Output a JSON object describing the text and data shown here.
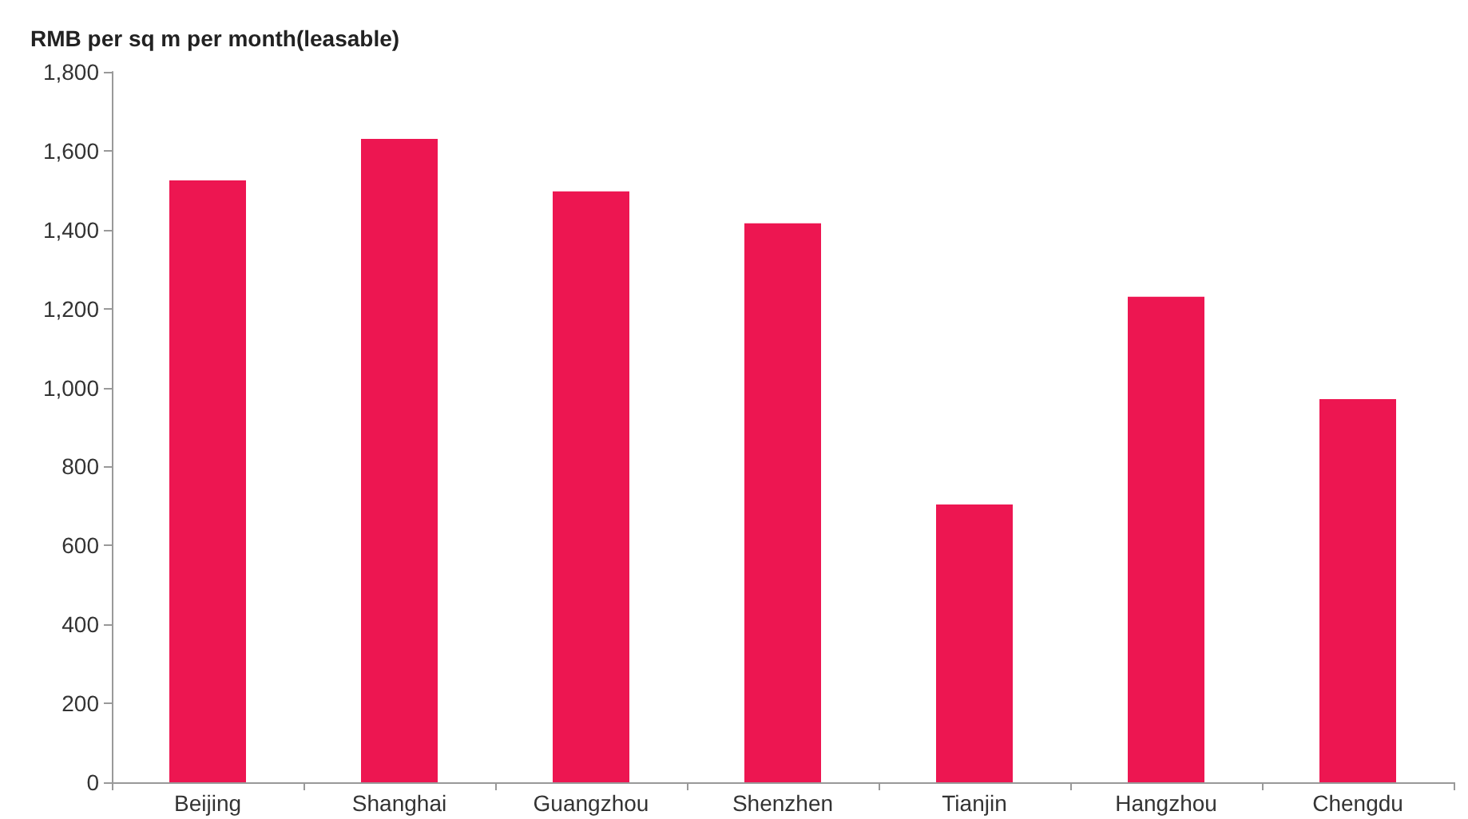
{
  "chart_data": {
    "type": "bar",
    "ylabel": "RMB per sq m per month(leasable)",
    "categories": [
      "Beijing",
      "Shanghai",
      "Guangzhou",
      "Shenzhen",
      "Tianjin",
      "Hangzhou",
      "Chengdu"
    ],
    "values": [
      1525,
      1630,
      1497,
      1416,
      704,
      1230,
      971
    ],
    "color": "#ed1651",
    "ylim": [
      0,
      1800
    ],
    "yticks": [
      0,
      200,
      400,
      600,
      800,
      {
        "value": 1000,
        "label": "1,000"
      },
      {
        "value": 1200,
        "label": "1,200"
      },
      {
        "value": 1400,
        "label": "1,400"
      },
      {
        "value": 1600,
        "label": "1,600"
      },
      {
        "value": 1800,
        "label": "1,800"
      }
    ],
    "grid": false
  }
}
